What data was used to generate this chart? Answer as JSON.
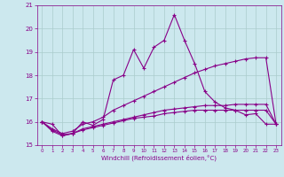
{
  "xlabel": "Windchill (Refroidissement éolien,°C)",
  "background_color": "#cce8ee",
  "grid_color": "#aacccc",
  "line_color": "#880088",
  "xlim": [
    -0.5,
    23.5
  ],
  "ylim": [
    15,
    21
  ],
  "yticks": [
    15,
    16,
    17,
    18,
    19,
    20,
    21
  ],
  "xticks": [
    0,
    1,
    2,
    3,
    4,
    5,
    6,
    7,
    8,
    9,
    10,
    11,
    12,
    13,
    14,
    15,
    16,
    17,
    18,
    19,
    20,
    21,
    22,
    23
  ],
  "series": [
    [
      16.0,
      15.9,
      15.4,
      15.5,
      16.0,
      15.85,
      16.1,
      17.8,
      18.0,
      19.1,
      18.3,
      19.2,
      19.5,
      20.6,
      19.5,
      18.5,
      17.3,
      16.85,
      16.6,
      16.5,
      16.3,
      16.35,
      15.9,
      15.9
    ],
    [
      16.0,
      15.7,
      15.5,
      15.6,
      15.9,
      16.0,
      16.2,
      16.5,
      16.7,
      16.9,
      17.1,
      17.3,
      17.5,
      17.7,
      17.9,
      18.1,
      18.25,
      18.4,
      18.5,
      18.6,
      18.7,
      18.75,
      18.75,
      15.9
    ],
    [
      16.0,
      15.65,
      15.45,
      15.5,
      15.7,
      15.8,
      15.9,
      16.0,
      16.1,
      16.2,
      16.3,
      16.4,
      16.5,
      16.55,
      16.6,
      16.65,
      16.7,
      16.7,
      16.7,
      16.75,
      16.75,
      16.75,
      16.75,
      15.9
    ],
    [
      16.0,
      15.6,
      15.4,
      15.5,
      15.65,
      15.75,
      15.85,
      15.95,
      16.05,
      16.15,
      16.2,
      16.25,
      16.35,
      16.4,
      16.45,
      16.5,
      16.5,
      16.5,
      16.5,
      16.5,
      16.5,
      16.5,
      16.5,
      15.9
    ]
  ]
}
